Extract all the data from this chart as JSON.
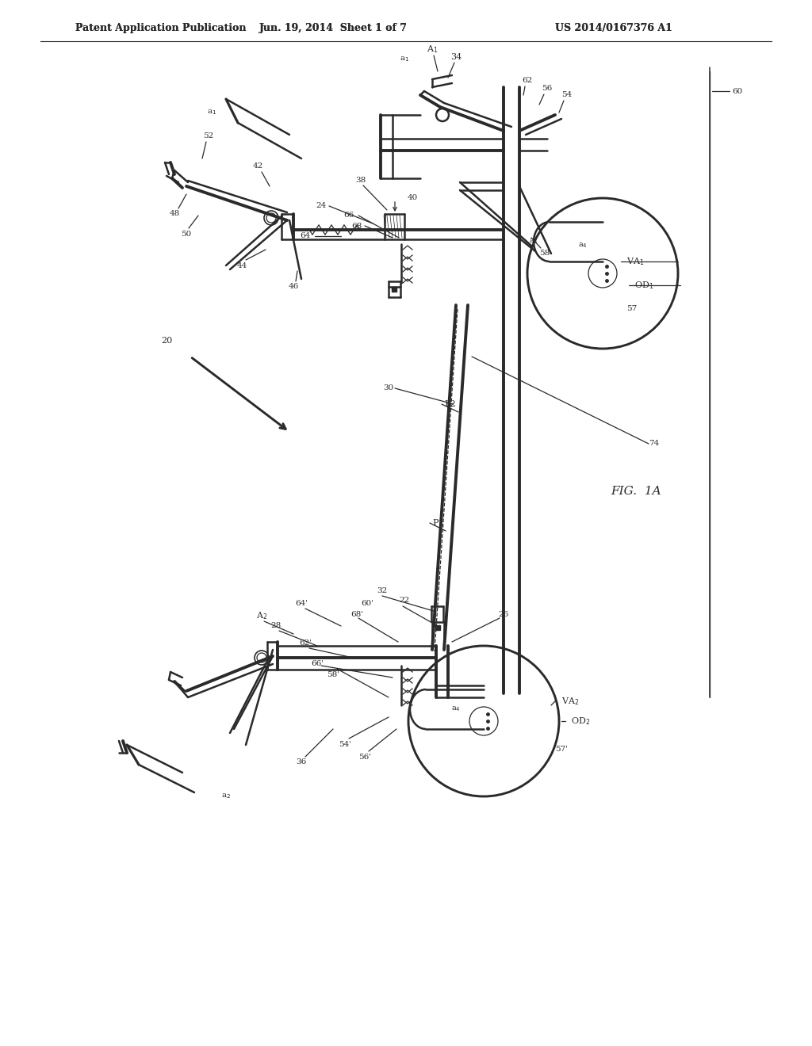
{
  "bg_color": "#ffffff",
  "header_left": "Patent Application Publication",
  "header_mid": "Jun. 19, 2014  Sheet 1 of 7",
  "header_right": "US 2014/0167376 A1",
  "fig_label": "FIG.  1A",
  "line_color": "#2a2a2a",
  "lw_main": 1.8,
  "lw_thin": 0.9,
  "lw_thick": 2.8
}
